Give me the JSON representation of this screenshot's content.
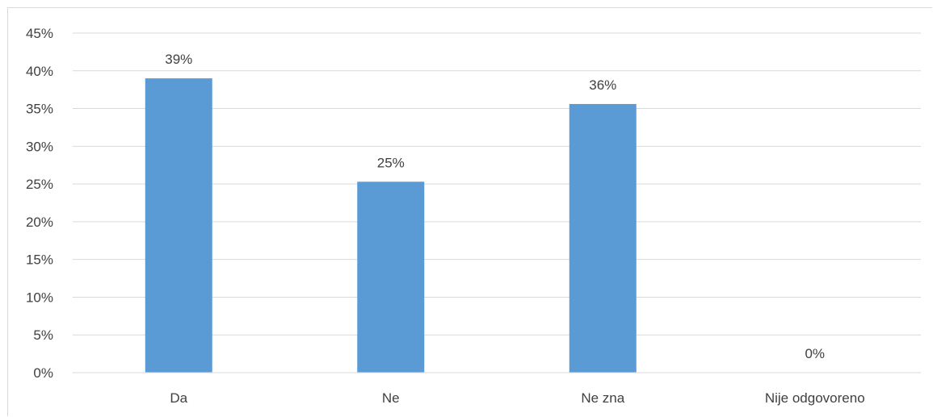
{
  "chart_data": {
    "type": "bar",
    "title": "",
    "xlabel": "",
    "ylabel": "",
    "categories": [
      "Da",
      "Ne",
      "Ne zna",
      "Nije odgovoreno"
    ],
    "values": [
      39,
      25.3,
      35.6,
      0
    ],
    "value_labels": [
      "39%",
      "25%",
      "36%",
      "0%"
    ],
    "ylim": [
      0,
      45
    ],
    "yticks": [
      0,
      5,
      10,
      15,
      20,
      25,
      30,
      35,
      40,
      45
    ],
    "ytick_labels": [
      "0%",
      "5%",
      "10%",
      "15%",
      "20%",
      "25%",
      "30%",
      "35%",
      "40%",
      "45%"
    ],
    "grid": true,
    "legend": "none",
    "bar_color": "#5b9bd5",
    "grid_color": "#d9d9d9",
    "text_color": "#404040"
  }
}
